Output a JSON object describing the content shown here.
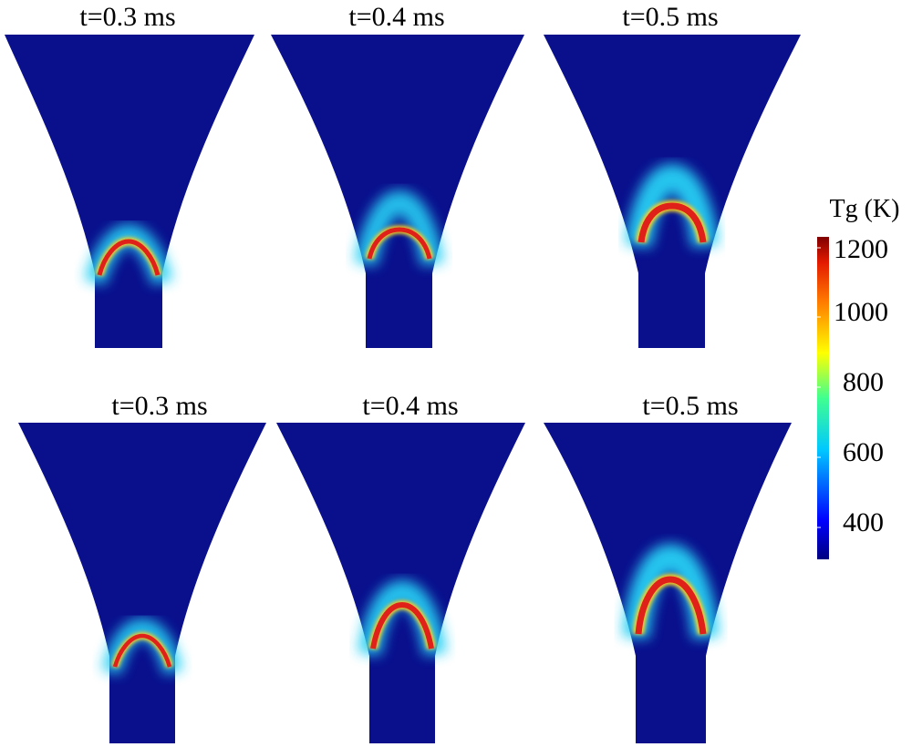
{
  "panels": [
    {
      "title": "t=0.3 ms",
      "row": 1
    },
    {
      "title": "t=0.4 ms",
      "row": 1
    },
    {
      "title": "t=0.5 ms",
      "row": 1
    },
    {
      "title": "t=0.3 ms",
      "row": 2
    },
    {
      "title": "t=0.4 ms",
      "row": 2
    },
    {
      "title": "t=0.5 ms",
      "row": 2
    }
  ],
  "colorbar": {
    "title": "Tg (K)",
    "min": 300,
    "max": 1220,
    "ticks": [
      "1200",
      "1000",
      "800",
      "600",
      "400"
    ],
    "colormap": "jet"
  },
  "colors": {
    "background_field": "#0a0f8c",
    "flame_core": "#e0211a",
    "flame_edge": "#ffd21f",
    "halo": "#2fd6f0"
  }
}
